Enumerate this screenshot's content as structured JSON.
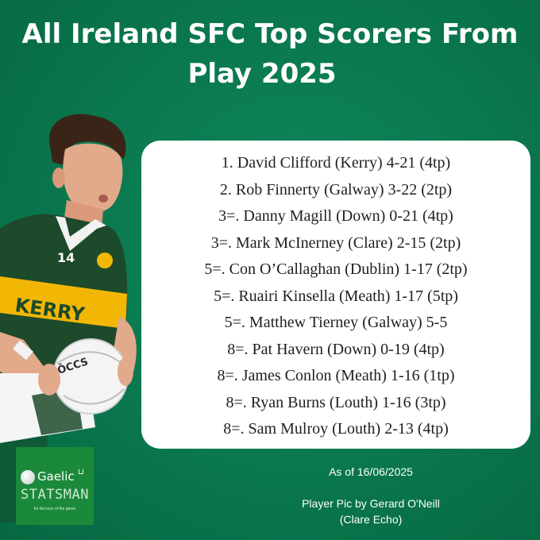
{
  "title": {
    "line1": "All Ireland SFC Top Scorers From",
    "line2": "Play 2025"
  },
  "scorers": [
    "1. David Clifford (Kerry) 4-21 (4tp)",
    "2. Rob Finnerty (Galway) 3-22 (2tp)",
    "3=. Danny Magill (Down) 0-21 (4tp)",
    "3=. Mark McInerney (Clare) 2-15 (2tp)",
    "5=. Con O’Callaghan (Dublin) 1-17 (2tp)",
    "5=. Ruairi Kinsella (Meath) 1-17 (5tp)",
    "5=. Matthew Tierney (Galway) 5-5",
    "8=. Pat Havern (Down) 0-19 (4tp)",
    "8=. James Conlon (Meath) 1-16 (1tp)",
    "8=. Ryan Burns (Louth) 1-16 (3tp)",
    "8=. Sam Mulroy (Louth) 2-13 (4tp)"
  ],
  "player": {
    "shirt_text": "KERRY",
    "shirt_number": "14",
    "ball_text": "ŌCCS"
  },
  "logo": {
    "line1": "Gaelic",
    "line2": "STATSMAN",
    "tagline": "for the love of the game"
  },
  "as_of": "As of 16/06/2025",
  "credit": {
    "line1": "Player Pic by Gerard O'Neill",
    "line2": "(Clare Echo)"
  },
  "colors": {
    "background": "#0b7a50",
    "card": "#ffffff",
    "kerry_green": "#1d4a2a",
    "kerry_gold": "#f2b705"
  }
}
